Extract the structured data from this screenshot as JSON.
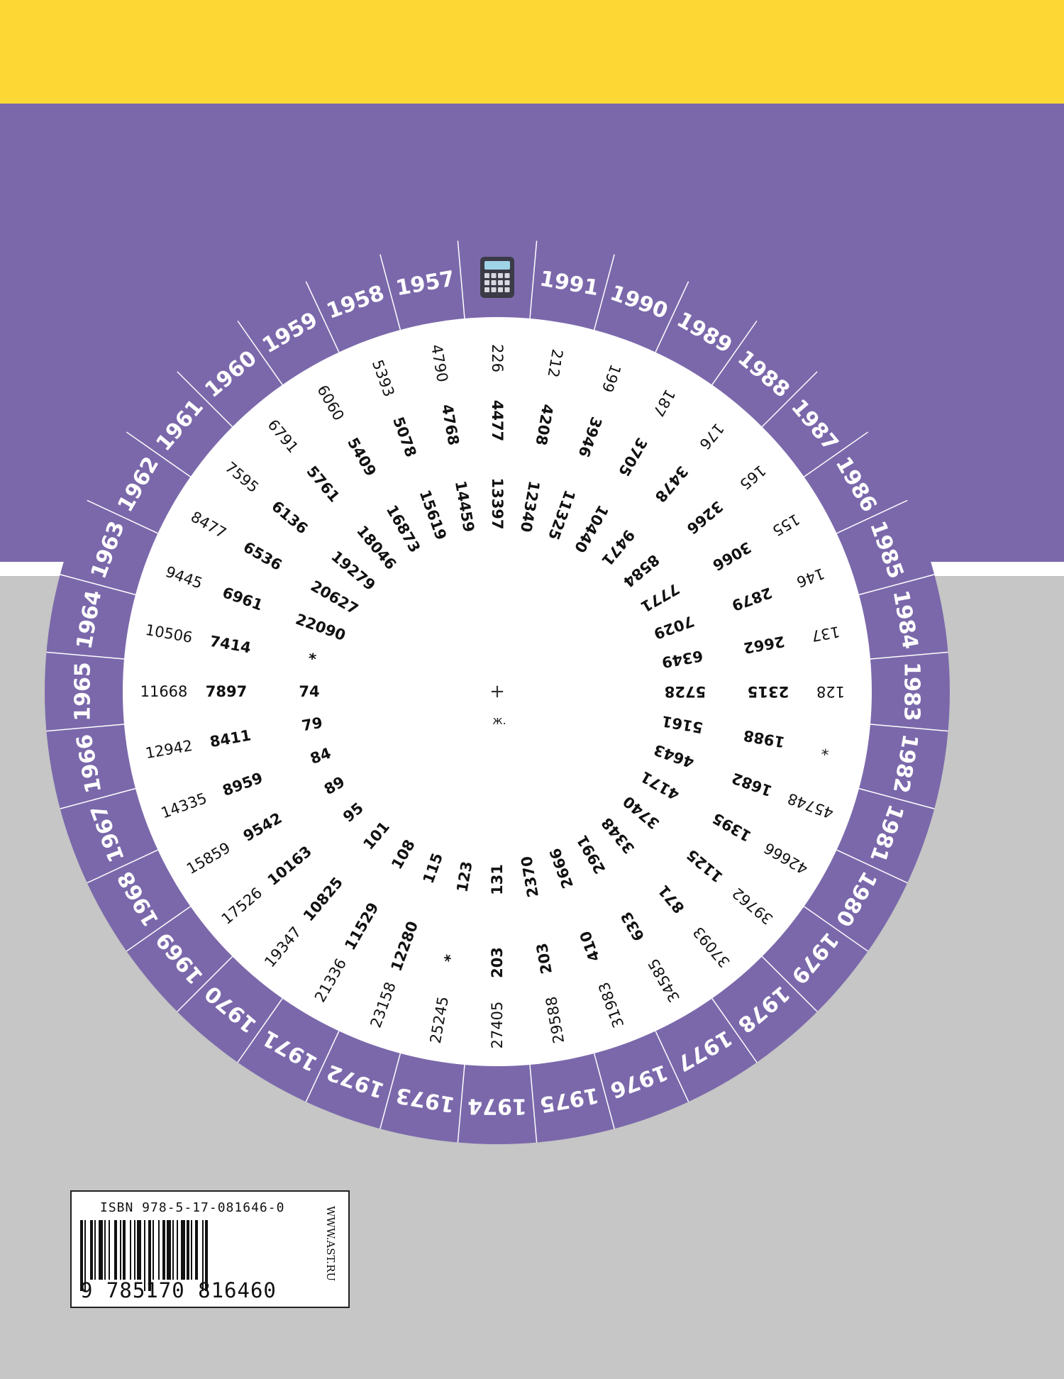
{
  "colors": {
    "top_band": "#fdd835",
    "purple": "#7b68ab",
    "gray": "#c5c6c5",
    "disc_inner": "#ffffff",
    "text": "#111111"
  },
  "calculator_icon": "calculator-icon",
  "years": [
    "1957",
    "1958",
    "1959",
    "1960",
    "1961",
    "1962",
    "1963",
    "1964",
    "1965",
    "1966",
    "1967",
    "1968",
    "1969",
    "1970",
    "1971",
    "1972",
    "1973",
    "1974",
    "1975",
    "1976",
    "1977",
    "1978",
    "1979",
    "1980",
    "1981",
    "1982",
    "1983",
    "1984",
    "1985",
    "1986",
    "1987",
    "1988",
    "1989",
    "1990",
    "1991"
  ],
  "ring_outer": [
    "226",
    "4790",
    "5393",
    "6060",
    "6791",
    "7595",
    "8477",
    "9445",
    "10506",
    "11668",
    "12942",
    "14335",
    "15859",
    "17526",
    "19347",
    "21336",
    "23158",
    "25245",
    "27405",
    "29588",
    "31983",
    "34585",
    "37093",
    "39762",
    "42666",
    "45748",
    "*",
    "128",
    "137",
    "146",
    "155",
    "165",
    "176",
    "187",
    "199",
    "212"
  ],
  "ring_middle": [
    "4477",
    "4768",
    "5078",
    "5409",
    "5761",
    "6136",
    "6536",
    "6961",
    "7414",
    "7897",
    "8411",
    "8959",
    "9542",
    "10163",
    "10825",
    "11529",
    "12280",
    "*",
    "203",
    "203",
    "410",
    "633",
    "871",
    "1125",
    "1395",
    "1682",
    "1988",
    "2315",
    "2662",
    "2879",
    "3066",
    "3266",
    "3478",
    "3705",
    "3946",
    "4208"
  ],
  "ring_inner": [
    "13397",
    "14459",
    "15619",
    "16873",
    "18046",
    "19279",
    "20627",
    "22090",
    "*",
    "74",
    "79",
    "84",
    "89",
    "95",
    "101",
    "108",
    "115",
    "123",
    "131",
    "2370",
    "2666",
    "2991",
    "3348",
    "3740",
    "4171",
    "4643",
    "5161",
    "5728",
    "6349",
    "7029",
    "7771",
    "8584",
    "9471",
    "10440",
    "11325",
    "12340"
  ],
  "center_mark": "+",
  "center_label": "ж.",
  "isbn": {
    "label": "ISBN 978-5-17-081646-0",
    "digits": "9 785170 816460",
    "website": "WWW.AST.RU"
  }
}
